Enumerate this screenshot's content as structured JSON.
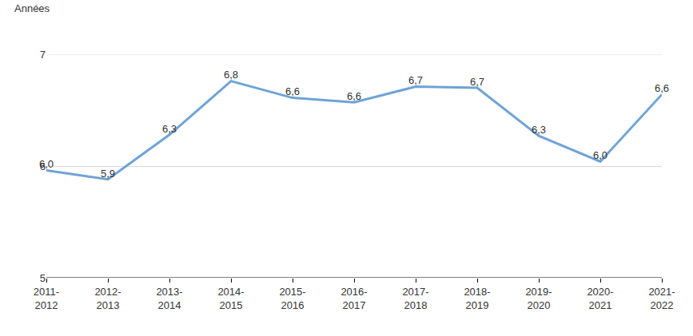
{
  "chart_data": {
    "type": "line",
    "y_label": "Années",
    "categories": [
      "2011-2012",
      "2012-2013",
      "2013-2014",
      "2014-2015",
      "2015-2016",
      "2016-2017",
      "2017-2018",
      "2018-2019",
      "2019-2020",
      "2020-2021",
      "2021-2022"
    ],
    "values": [
      5.96,
      5.88,
      6.28,
      6.76,
      6.61,
      6.57,
      6.71,
      6.7,
      6.27,
      6.04,
      6.64
    ],
    "value_labels": [
      "6,0",
      "5,9",
      "6,3",
      "6,8",
      "6,6",
      "6,6",
      "6,7",
      "6,7",
      "6,3",
      "6,0",
      "6,6"
    ],
    "color": "#6fa3d6",
    "ylim": [
      5,
      7
    ],
    "yticks": [
      5,
      6,
      7
    ],
    "grid": true,
    "data_labels": true
  }
}
